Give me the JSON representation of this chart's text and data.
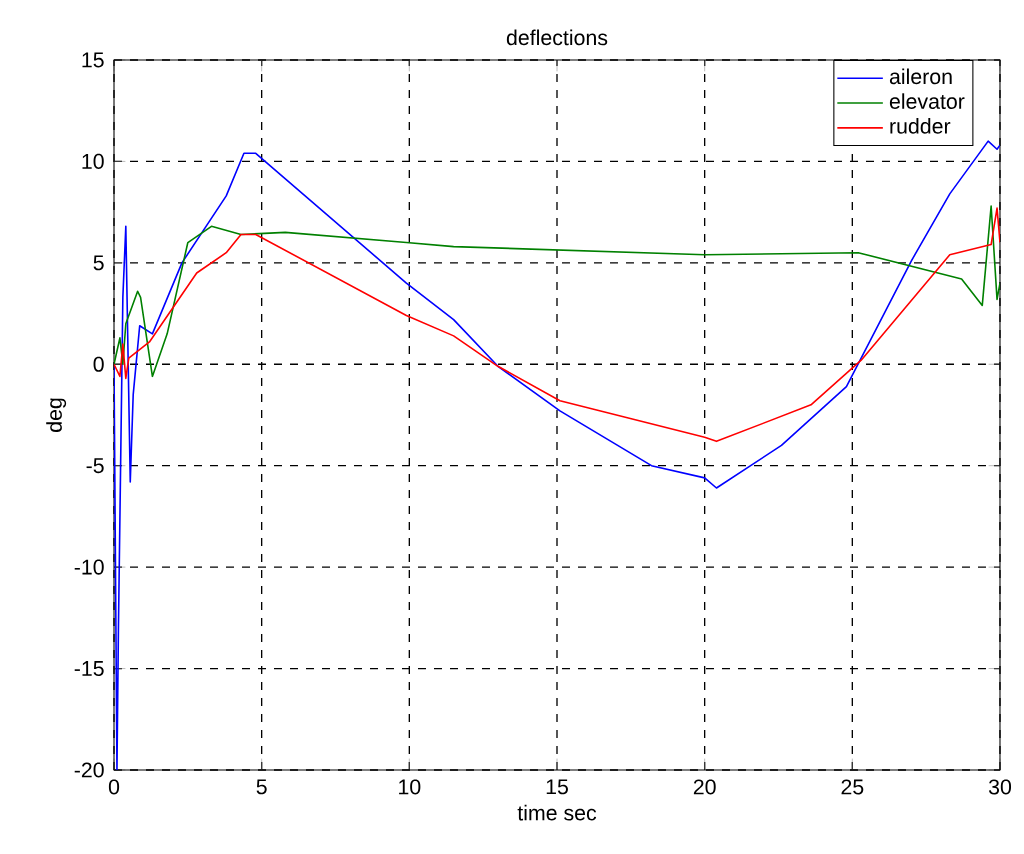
{
  "chart_data": {
    "type": "line",
    "title": "deflections",
    "xlabel": "time  sec",
    "ylabel": "deg",
    "xlim": [
      0,
      30
    ],
    "ylim": [
      -20,
      15
    ],
    "xticks": [
      0,
      5,
      10,
      15,
      20,
      25,
      30
    ],
    "yticks": [
      -20,
      -15,
      -10,
      -5,
      0,
      5,
      10,
      15
    ],
    "grid": true,
    "legend": "top right",
    "series": [
      {
        "name": "aileron",
        "color": "#0000ff",
        "x": [
          0,
          0.1,
          0.15,
          0.3,
          0.4,
          0.55,
          0.65,
          0.87,
          1.3,
          2.3,
          3.8,
          4.4,
          4.8,
          9.9,
          11.5,
          13.0,
          15.1,
          18.2,
          20.0,
          20.4,
          22.6,
          24.8,
          27.0,
          28.3,
          29.6,
          29.9,
          30
        ],
        "values": [
          0,
          -20,
          -13,
          3.3,
          6.8,
          -5.8,
          -1.5,
          1.9,
          1.5,
          5,
          8.3,
          10.4,
          10.4,
          4.0,
          2.2,
          -0.1,
          -2.3,
          -5.0,
          -5.6,
          -6.1,
          -4.0,
          -1.1,
          5.1,
          8.4,
          11,
          10.6,
          10.8
        ]
      },
      {
        "name": "elevator",
        "color": "#008000",
        "x": [
          0,
          0.2,
          0.3,
          0.4,
          0.8,
          0.9,
          1.3,
          1.8,
          2.5,
          3.3,
          4.3,
          5.8,
          9.9,
          11.5,
          20,
          25.2,
          28.7,
          29.4,
          29.7,
          29.9,
          30
        ],
        "values": [
          0,
          1.3,
          0,
          2,
          3.6,
          3.3,
          -0.6,
          1.5,
          6.0,
          6.8,
          6.4,
          6.5,
          6.0,
          5.8,
          5.4,
          5.5,
          4.2,
          2.9,
          7.8,
          3.2,
          4
        ]
      },
      {
        "name": "rudder",
        "color": "#ff0000",
        "x": [
          0,
          0.2,
          0.3,
          0.4,
          0.5,
          1.2,
          2.8,
          3.8,
          4.3,
          4.8,
          9.9,
          11.5,
          13,
          15.1,
          20,
          20.4,
          23.6,
          25.3,
          28.3,
          29.7,
          29.9,
          30
        ],
        "values": [
          0,
          -0.6,
          1,
          -0.7,
          0.3,
          1.1,
          4.5,
          5.5,
          6.4,
          6.4,
          2.4,
          1.4,
          -0.1,
          -1.8,
          -3.6,
          -3.8,
          -2.0,
          0.2,
          5.4,
          5.9,
          7.7,
          6
        ]
      }
    ]
  }
}
